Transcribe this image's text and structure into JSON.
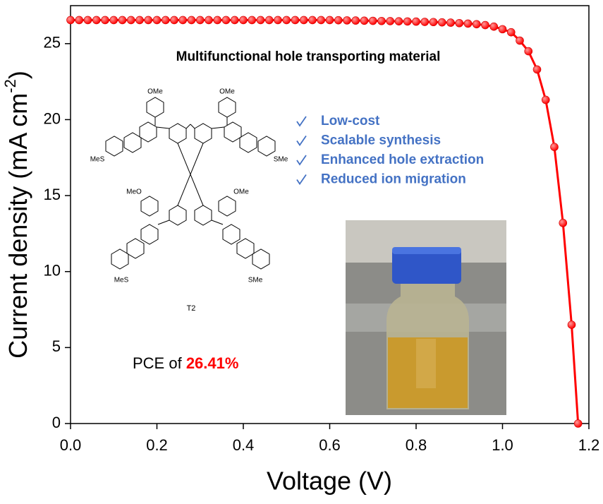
{
  "chart_data": {
    "type": "line-scatter",
    "xlabel": "Voltage (V)",
    "ylabel": "Current density (mA cm",
    "ylabel_sup": "-2",
    "ylabel_end": ")",
    "xlim": [
      0,
      1.2
    ],
    "ylim": [
      0,
      27.5
    ],
    "xticks": [
      {
        "value": 0,
        "label": "0.0"
      },
      0.2,
      0.4,
      0.6,
      0.8,
      {
        "value": 1,
        "label": "1.0"
      },
      1.2
    ],
    "yticks": [
      0,
      5,
      10,
      15,
      20,
      25
    ],
    "color": "#ff0000",
    "x": [
      0,
      0.02,
      0.04,
      0.06,
      0.08,
      0.1,
      0.12,
      0.14,
      0.16,
      0.18,
      0.2,
      0.22,
      0.24,
      0.26,
      0.28,
      0.3,
      0.32,
      0.34,
      0.36,
      0.38,
      0.4,
      0.42,
      0.44,
      0.46,
      0.48,
      0.5,
      0.52,
      0.54,
      0.56,
      0.58,
      0.6,
      0.62,
      0.64,
      0.66,
      0.68,
      0.7,
      0.72,
      0.74,
      0.76,
      0.78,
      0.8,
      0.82,
      0.84,
      0.86,
      0.88,
      0.9,
      0.92,
      0.94,
      0.96,
      0.98,
      1.0,
      1.02,
      1.04,
      1.06,
      1.08,
      1.1,
      1.12,
      1.14,
      1.16,
      1.175
    ],
    "values": [
      26.55,
      26.55,
      26.55,
      26.55,
      26.55,
      26.55,
      26.55,
      26.55,
      26.55,
      26.55,
      26.55,
      26.55,
      26.55,
      26.55,
      26.55,
      26.55,
      26.55,
      26.55,
      26.55,
      26.55,
      26.55,
      26.55,
      26.55,
      26.55,
      26.55,
      26.55,
      26.55,
      26.55,
      26.55,
      26.55,
      26.55,
      26.54,
      26.53,
      26.52,
      26.51,
      26.5,
      26.49,
      26.48,
      26.47,
      26.46,
      26.45,
      26.43,
      26.42,
      26.4,
      26.38,
      26.35,
      26.32,
      26.28,
      26.22,
      26.12,
      25.95,
      25.75,
      25.2,
      24.5,
      23.3,
      21.3,
      18.2,
      13.2,
      6.5,
      0
    ]
  },
  "inset": {
    "title": "Multifunctional hole transporting material",
    "features": [
      "Low-cost",
      "Scalable synthesis",
      "Enhanced hole extraction",
      "Reduced ion migration"
    ],
    "pce_prefix": "PCE of ",
    "pce_value": "26.41%",
    "molecule_name": "T2",
    "molecule_labels": [
      "OMe",
      "OMe",
      "MeS",
      "SMe",
      "MeO",
      "OMe",
      "MeS",
      "SMe"
    ]
  }
}
